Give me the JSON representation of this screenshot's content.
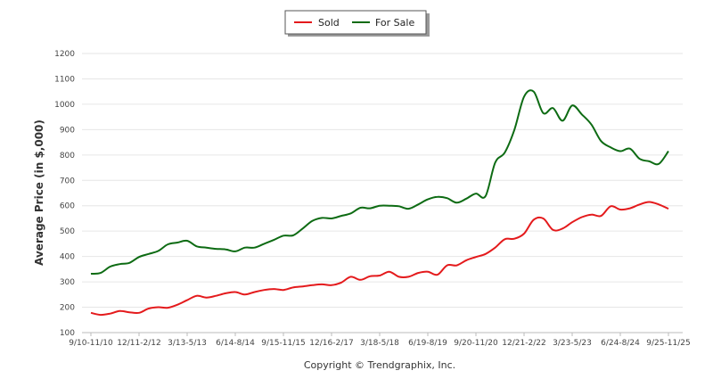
{
  "chart_data": {
    "type": "line",
    "title": "",
    "xlabel": "",
    "ylabel": "Average Price (in $,000)",
    "ylim": [
      100,
      1200
    ],
    "yticks": [
      100,
      200,
      300,
      400,
      500,
      600,
      700,
      800,
      900,
      1000,
      1100,
      1200
    ],
    "grid": true,
    "legend_position": "top-center",
    "footer": "Copyright © Trendgraphix, Inc.",
    "x_tick_labels": [
      "9/10-11/10",
      "12/11-2/12",
      "3/13-5/13",
      "6/14-8/14",
      "9/15-11/15",
      "12/16-2/17",
      "3/18-5/18",
      "6/19-8/19",
      "9/20-11/20",
      "12/21-2/22",
      "3/23-5/23",
      "6/24-8/24",
      "9/25-11/25"
    ],
    "n_periods": 61,
    "series": [
      {
        "name": "Sold",
        "color": "#e41a1c",
        "values": [
          178,
          170,
          175,
          185,
          180,
          178,
          195,
          200,
          198,
          210,
          228,
          245,
          238,
          245,
          255,
          260,
          250,
          260,
          268,
          272,
          268,
          278,
          282,
          287,
          290,
          287,
          297,
          320,
          308,
          322,
          325,
          340,
          320,
          320,
          335,
          340,
          328,
          365,
          365,
          385,
          398,
          410,
          435,
          468,
          470,
          490,
          545,
          550,
          505,
          510,
          535,
          555,
          565,
          560,
          598,
          585,
          590,
          605,
          615,
          605,
          588
        ]
      },
      {
        "name": "For Sale",
        "color": "#0d6b13",
        "values": [
          332,
          335,
          360,
          370,
          375,
          398,
          410,
          422,
          448,
          455,
          462,
          440,
          435,
          430,
          428,
          420,
          435,
          435,
          450,
          465,
          482,
          483,
          510,
          540,
          552,
          550,
          560,
          570,
          592,
          590,
          600,
          600,
          598,
          588,
          605,
          625,
          635,
          630,
          612,
          628,
          648,
          638,
          770,
          810,
          900,
          1030,
          1050,
          965,
          985,
          935,
          995,
          960,
          920,
          855,
          830,
          815,
          825,
          785,
          775,
          765,
          815
        ]
      }
    ]
  }
}
